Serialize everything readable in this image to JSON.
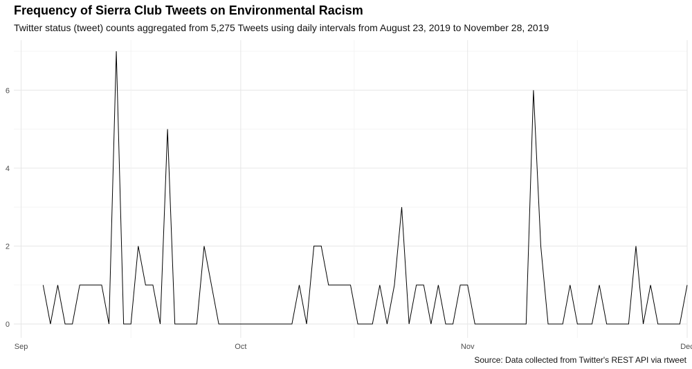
{
  "title": "Frequency of Sierra Club Tweets on Environmental Racism",
  "subtitle": "Twitter status (tweet) counts aggregated from 5,275 Tweets using daily intervals from August 23, 2019 to November 28, 2019",
  "caption": "Source: Data collected from Twitter's REST API via rtweet",
  "chart_data": {
    "type": "line",
    "grid": true,
    "x_axis": {
      "range": [
        "2019-08-31",
        "2019-12-01"
      ],
      "ticks": [
        {
          "label": "Sep",
          "date": "2019-09-01"
        },
        {
          "label": "Oct",
          "date": "2019-10-01"
        },
        {
          "label": "Nov",
          "date": "2019-11-01"
        },
        {
          "label": "Dec",
          "date": "2019-12-01"
        }
      ]
    },
    "y_axis": {
      "range": [
        0,
        7
      ],
      "ticks": [
        0,
        2,
        4,
        6
      ]
    },
    "series": [
      {
        "color": "#000000",
        "points": [
          [
            "2019-09-04",
            1
          ],
          [
            "2019-09-05",
            0
          ],
          [
            "2019-09-06",
            1
          ],
          [
            "2019-09-07",
            0
          ],
          [
            "2019-09-08",
            0
          ],
          [
            "2019-09-09",
            1
          ],
          [
            "2019-09-10",
            1
          ],
          [
            "2019-09-11",
            1
          ],
          [
            "2019-09-12",
            1
          ],
          [
            "2019-09-13",
            0
          ],
          [
            "2019-09-14",
            7
          ],
          [
            "2019-09-15",
            0
          ],
          [
            "2019-09-16",
            0
          ],
          [
            "2019-09-17",
            2
          ],
          [
            "2019-09-18",
            1
          ],
          [
            "2019-09-19",
            1
          ],
          [
            "2019-09-20",
            0
          ],
          [
            "2019-09-21",
            5
          ],
          [
            "2019-09-22",
            0
          ],
          [
            "2019-09-23",
            0
          ],
          [
            "2019-09-24",
            0
          ],
          [
            "2019-09-25",
            0
          ],
          [
            "2019-09-26",
            2
          ],
          [
            "2019-09-27",
            1
          ],
          [
            "2019-09-28",
            0
          ],
          [
            "2019-09-29",
            0
          ],
          [
            "2019-09-30",
            0
          ],
          [
            "2019-10-01",
            0
          ],
          [
            "2019-10-02",
            0
          ],
          [
            "2019-10-03",
            0
          ],
          [
            "2019-10-04",
            0
          ],
          [
            "2019-10-05",
            0
          ],
          [
            "2019-10-06",
            0
          ],
          [
            "2019-10-07",
            0
          ],
          [
            "2019-10-08",
            0
          ],
          [
            "2019-10-09",
            1
          ],
          [
            "2019-10-10",
            0
          ],
          [
            "2019-10-11",
            2
          ],
          [
            "2019-10-12",
            2
          ],
          [
            "2019-10-13",
            1
          ],
          [
            "2019-10-14",
            1
          ],
          [
            "2019-10-15",
            1
          ],
          [
            "2019-10-16",
            1
          ],
          [
            "2019-10-17",
            0
          ],
          [
            "2019-10-18",
            0
          ],
          [
            "2019-10-19",
            0
          ],
          [
            "2019-10-20",
            1
          ],
          [
            "2019-10-21",
            0
          ],
          [
            "2019-10-22",
            1
          ],
          [
            "2019-10-23",
            3
          ],
          [
            "2019-10-24",
            0
          ],
          [
            "2019-10-25",
            1
          ],
          [
            "2019-10-26",
            1
          ],
          [
            "2019-10-27",
            0
          ],
          [
            "2019-10-28",
            1
          ],
          [
            "2019-10-29",
            0
          ],
          [
            "2019-10-30",
            0
          ],
          [
            "2019-10-31",
            1
          ],
          [
            "2019-11-01",
            1
          ],
          [
            "2019-11-02",
            0
          ],
          [
            "2019-11-03",
            0
          ],
          [
            "2019-11-04",
            0
          ],
          [
            "2019-11-05",
            0
          ],
          [
            "2019-11-06",
            0
          ],
          [
            "2019-11-07",
            0
          ],
          [
            "2019-11-08",
            0
          ],
          [
            "2019-11-09",
            0
          ],
          [
            "2019-11-10",
            6
          ],
          [
            "2019-11-11",
            2
          ],
          [
            "2019-11-12",
            0
          ],
          [
            "2019-11-13",
            0
          ],
          [
            "2019-11-14",
            0
          ],
          [
            "2019-11-15",
            1
          ],
          [
            "2019-11-16",
            0
          ],
          [
            "2019-11-17",
            0
          ],
          [
            "2019-11-18",
            0
          ],
          [
            "2019-11-19",
            1
          ],
          [
            "2019-11-20",
            0
          ],
          [
            "2019-11-21",
            0
          ],
          [
            "2019-11-22",
            0
          ],
          [
            "2019-11-23",
            0
          ],
          [
            "2019-11-24",
            2
          ],
          [
            "2019-11-25",
            0
          ],
          [
            "2019-11-26",
            1
          ],
          [
            "2019-11-27",
            0
          ],
          [
            "2019-11-28",
            0
          ],
          [
            "2019-11-29",
            0
          ],
          [
            "2019-11-30",
            0
          ],
          [
            "2019-12-01",
            1
          ]
        ]
      }
    ]
  }
}
